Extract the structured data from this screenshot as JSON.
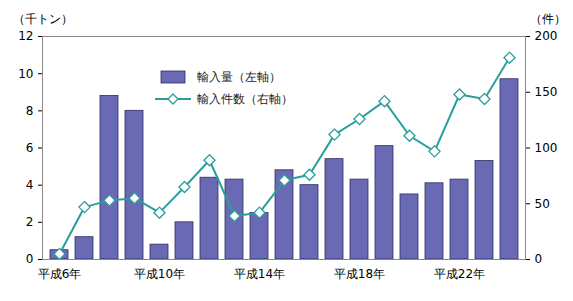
{
  "chart_data": {
    "type": "bar",
    "categories": [
      "平成6年",
      null,
      null,
      null,
      "平成10年",
      null,
      null,
      null,
      "平成14年",
      null,
      null,
      null,
      "平成18年",
      null,
      null,
      null,
      "平成22年",
      null,
      null
    ],
    "series": [
      {
        "name": "輸入量（左軸）",
        "type": "bar",
        "color": "#6a6ab4",
        "values": [
          0.5,
          1.2,
          8.8,
          8.0,
          0.8,
          2.0,
          4.4,
          4.3,
          2.5,
          4.8,
          4.0,
          5.4,
          4.3,
          6.1,
          3.5,
          4.1,
          4.3,
          5.3,
          9.7
        ]
      },
      {
        "name": "輸入件数（右軸）",
        "type": "line",
        "axis": "y2",
        "color": "#2a9d9d",
        "marker": "diamond",
        "values": [
          5,
          47,
          53,
          55,
          42,
          65,
          89,
          39,
          42,
          71,
          76,
          112,
          126,
          142,
          111,
          97,
          148,
          144,
          181
        ]
      }
    ],
    "y_label": "（千トン）",
    "y2_label": "（件）",
    "ylim": [
      0,
      12
    ],
    "yticks": [
      0,
      2,
      4,
      6,
      8,
      10,
      12
    ],
    "y2lim": [
      0,
      200
    ],
    "y2ticks": [
      0,
      50,
      100,
      150,
      200
    ],
    "legend": "top",
    "grid": false
  }
}
